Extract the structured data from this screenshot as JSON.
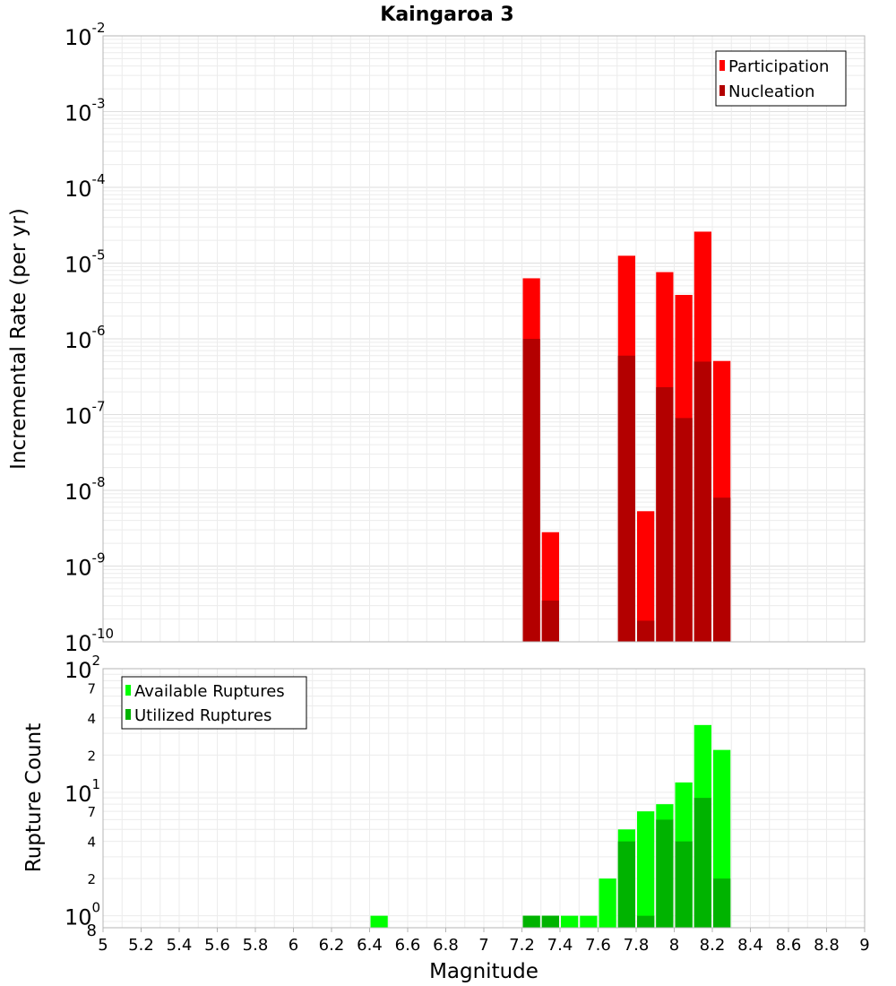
{
  "title": "Kaingaroa 3",
  "chart_data": [
    {
      "type": "bar",
      "title": "Kaingaroa 3",
      "ylabel": "Incremental Rate (per yr)",
      "xlabel": "",
      "xlim": [
        5,
        9
      ],
      "ylim": [
        1e-10,
        0.01
      ],
      "yscale": "log",
      "bin_width": 0.1,
      "grid": true,
      "legend_position": "top-right",
      "y_tick_mantissa": "10",
      "y_tick_exponents": [
        "-2",
        "-3",
        "-4",
        "-5",
        "-6",
        "-7",
        "-8",
        "-9",
        "-10"
      ],
      "series": [
        {
          "name": "Participation",
          "color": "#ff0000",
          "bins": [
            {
              "x": 7.25,
              "y": 6.3e-06
            },
            {
              "x": 7.35,
              "y": 2.8e-09
            },
            {
              "x": 7.75,
              "y": 1.25e-05
            },
            {
              "x": 7.85,
              "y": 5.3e-09
            },
            {
              "x": 7.95,
              "y": 7.6e-06
            },
            {
              "x": 8.05,
              "y": 3.8e-06
            },
            {
              "x": 8.15,
              "y": 2.6e-05
            },
            {
              "x": 8.25,
              "y": 5.1e-07
            }
          ]
        },
        {
          "name": "Nucleation",
          "color": "#b30000",
          "bins": [
            {
              "x": 7.25,
              "y": 1e-06
            },
            {
              "x": 7.35,
              "y": 3.5e-10
            },
            {
              "x": 7.75,
              "y": 6e-07
            },
            {
              "x": 7.85,
              "y": 1.9e-10
            },
            {
              "x": 7.95,
              "y": 2.3e-07
            },
            {
              "x": 8.05,
              "y": 9e-08
            },
            {
              "x": 8.15,
              "y": 5e-07
            },
            {
              "x": 8.25,
              "y": 8e-09
            }
          ]
        }
      ]
    },
    {
      "type": "bar",
      "title": "",
      "ylabel": "Rupture Count",
      "xlabel": "Magnitude",
      "xlim": [
        5,
        9
      ],
      "ylim": [
        0.8,
        100
      ],
      "yscale": "log",
      "bin_width": 0.1,
      "grid": true,
      "legend_position": "top-left",
      "x_ticks": [
        "5",
        "5.2",
        "5.4",
        "5.6",
        "5.8",
        "6",
        "6.2",
        "6.4",
        "6.6",
        "6.8",
        "7",
        "7.2",
        "7.4",
        "7.6",
        "7.8",
        "8",
        "8.2",
        "8.4",
        "8.6",
        "8.8",
        "9"
      ],
      "y_major_ticks": [
        {
          "mantissa": "10",
          "exponent": "2",
          "value": 100
        },
        {
          "mantissa": "10",
          "exponent": "1",
          "value": 10
        },
        {
          "mantissa": "10",
          "exponent": "0",
          "value": 1
        }
      ],
      "y_minor_ticks": [
        {
          "label": "7",
          "value": 70
        },
        {
          "label": "4",
          "value": 40
        },
        {
          "label": "2",
          "value": 20
        },
        {
          "label": "7",
          "value": 7
        },
        {
          "label": "4",
          "value": 4
        },
        {
          "label": "2",
          "value": 2
        },
        {
          "label": "8",
          "value": 0.8
        }
      ],
      "series": [
        {
          "name": "Available Ruptures",
          "color": "#00ff00",
          "bins": [
            {
              "x": 6.45,
              "y": 1
            },
            {
              "x": 7.25,
              "y": 1
            },
            {
              "x": 7.35,
              "y": 1
            },
            {
              "x": 7.45,
              "y": 1
            },
            {
              "x": 7.55,
              "y": 1
            },
            {
              "x": 7.65,
              "y": 2
            },
            {
              "x": 7.75,
              "y": 5
            },
            {
              "x": 7.85,
              "y": 7
            },
            {
              "x": 7.95,
              "y": 8
            },
            {
              "x": 8.05,
              "y": 12
            },
            {
              "x": 8.15,
              "y": 35
            },
            {
              "x": 8.25,
              "y": 22
            }
          ]
        },
        {
          "name": "Utilized Ruptures",
          "color": "#00b300",
          "bins": [
            {
              "x": 7.25,
              "y": 1
            },
            {
              "x": 7.35,
              "y": 1
            },
            {
              "x": 7.75,
              "y": 4
            },
            {
              "x": 7.85,
              "y": 1
            },
            {
              "x": 7.95,
              "y": 6
            },
            {
              "x": 8.05,
              "y": 4
            },
            {
              "x": 8.15,
              "y": 9
            },
            {
              "x": 8.25,
              "y": 2
            }
          ]
        }
      ]
    }
  ]
}
